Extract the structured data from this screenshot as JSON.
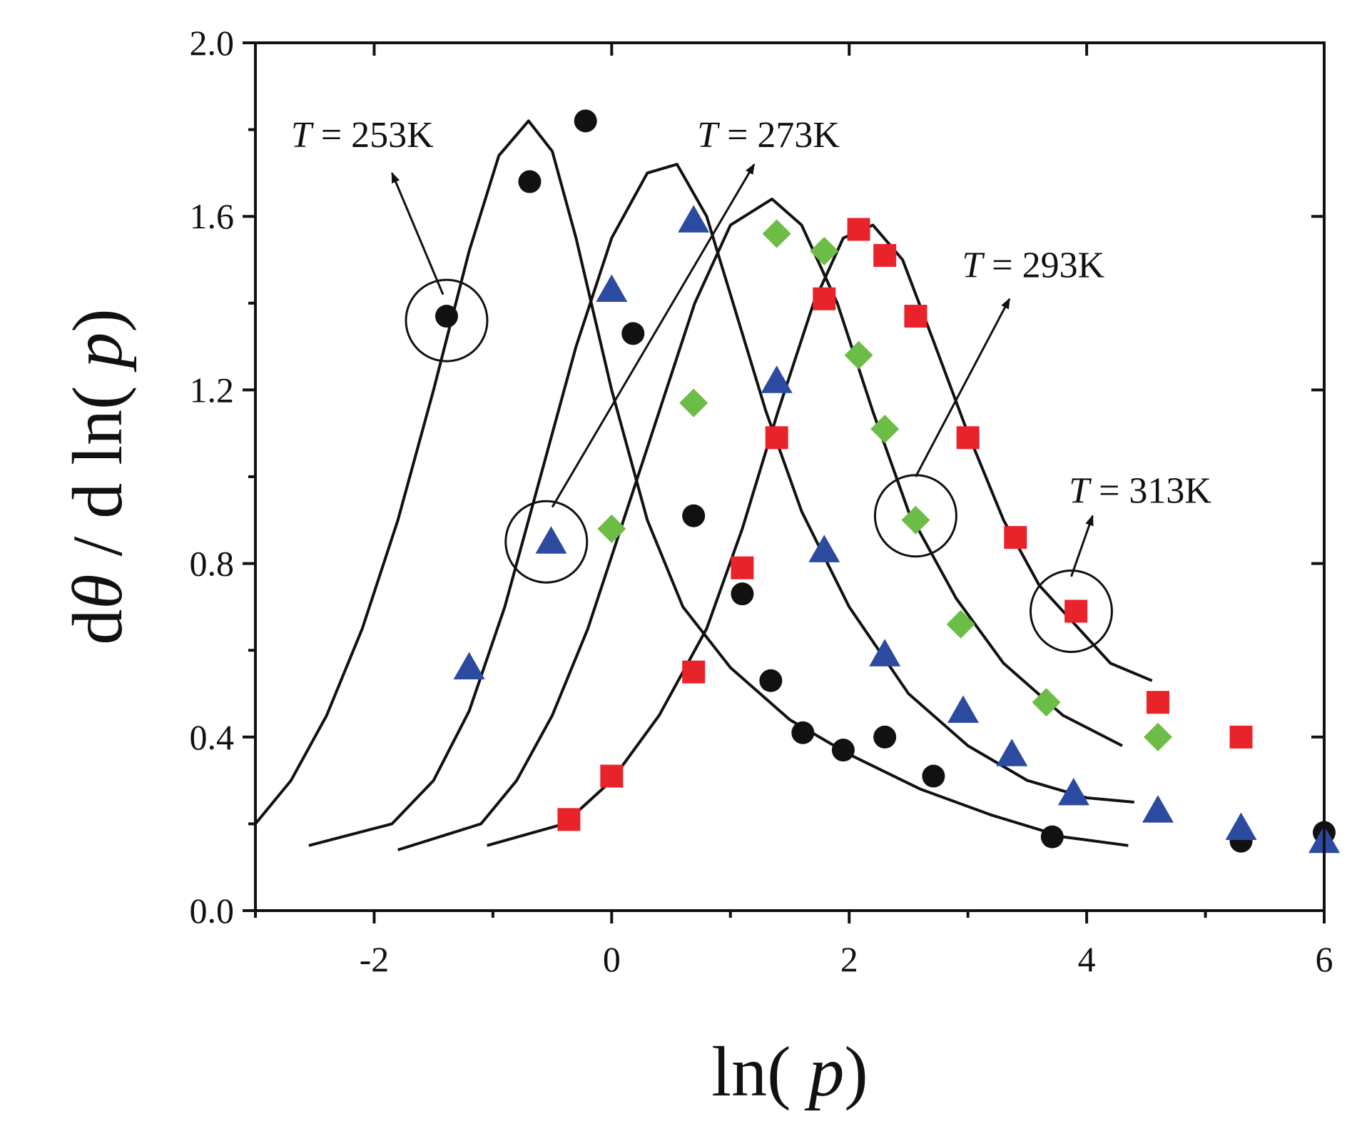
{
  "chart_data": {
    "type": "scatter",
    "title": "",
    "xlabel": "ln( p)",
    "xlabel_parts": {
      "prefix": "ln(",
      "var": "p",
      "suffix": ")"
    },
    "ylabel": "dθ / d ln( p)",
    "ylabel_parts": {
      "d1": "d",
      "theta": "θ",
      "mid": " / d ln(",
      "var": "p",
      "suffix": ")"
    },
    "xlim": [
      -3,
      6
    ],
    "ylim": [
      0.0,
      2.0
    ],
    "xticks": [
      -2,
      0,
      2,
      4,
      6
    ],
    "xtick_labels": [
      "-2",
      "0",
      "2",
      "4",
      "6"
    ],
    "xticks_minor": [
      -3,
      -1,
      1,
      3,
      5
    ],
    "yticks": [
      0.0,
      0.4,
      0.8,
      1.2,
      1.6,
      2.0
    ],
    "ytick_labels": [
      "0.0",
      "0.4",
      "0.8",
      "1.2",
      "1.6",
      "2.0"
    ],
    "yticks_minor": [
      0.2,
      0.6,
      1.0,
      1.4,
      1.8
    ],
    "grid": false,
    "legend": "none",
    "series": [
      {
        "name": "T = 253K",
        "marker": "circle",
        "color": "#111111",
        "points": [
          [
            -1.39,
            1.37
          ],
          [
            -0.69,
            1.68
          ],
          [
            -0.22,
            1.82
          ],
          [
            0.18,
            1.33
          ],
          [
            0.69,
            0.91
          ],
          [
            1.1,
            0.73
          ],
          [
            1.34,
            0.53
          ],
          [
            1.61,
            0.41
          ],
          [
            1.95,
            0.37
          ],
          [
            2.3,
            0.4
          ],
          [
            2.71,
            0.31
          ],
          [
            3.71,
            0.17
          ],
          [
            5.3,
            0.16
          ],
          [
            6.0,
            0.18
          ]
        ]
      },
      {
        "name": "T = 273K",
        "marker": "triangle",
        "color": "#2b4aa0",
        "points": [
          [
            -1.2,
            0.56
          ],
          [
            -0.51,
            0.85
          ],
          [
            0.0,
            1.43
          ],
          [
            0.69,
            1.59
          ],
          [
            1.39,
            1.22
          ],
          [
            1.79,
            0.83
          ],
          [
            2.3,
            0.59
          ],
          [
            2.96,
            0.46
          ],
          [
            3.37,
            0.36
          ],
          [
            3.89,
            0.27
          ],
          [
            4.6,
            0.23
          ],
          [
            5.3,
            0.19
          ],
          [
            6.0,
            0.16
          ]
        ]
      },
      {
        "name": "T = 293K",
        "marker": "diamond",
        "color": "#6cbd45",
        "points": [
          [
            0.0,
            0.88
          ],
          [
            0.69,
            1.17
          ],
          [
            1.39,
            1.56
          ],
          [
            1.79,
            1.52
          ],
          [
            2.08,
            1.28
          ],
          [
            2.3,
            1.11
          ],
          [
            2.56,
            0.9
          ],
          [
            2.94,
            0.66
          ],
          [
            3.66,
            0.48
          ],
          [
            4.6,
            0.4
          ]
        ]
      },
      {
        "name": "T = 313K",
        "marker": "square",
        "color": "#e8232a",
        "points": [
          [
            -0.36,
            0.21
          ],
          [
            0.0,
            0.31
          ],
          [
            0.69,
            0.55
          ],
          [
            1.1,
            0.79
          ],
          [
            1.39,
            1.09
          ],
          [
            1.79,
            1.41
          ],
          [
            2.08,
            1.57
          ],
          [
            2.3,
            1.51
          ],
          [
            2.56,
            1.37
          ],
          [
            3.0,
            1.09
          ],
          [
            3.4,
            0.86
          ],
          [
            3.91,
            0.69
          ],
          [
            4.6,
            0.48
          ],
          [
            5.3,
            0.4
          ]
        ]
      }
    ],
    "fits": [
      {
        "name": "fit-253K",
        "points": [
          [
            -3.0,
            0.2
          ],
          [
            -2.7,
            0.3
          ],
          [
            -2.4,
            0.45
          ],
          [
            -2.1,
            0.65
          ],
          [
            -1.8,
            0.9
          ],
          [
            -1.5,
            1.2
          ],
          [
            -1.2,
            1.52
          ],
          [
            -0.95,
            1.74
          ],
          [
            -0.7,
            1.82
          ],
          [
            -0.5,
            1.75
          ],
          [
            -0.3,
            1.55
          ],
          [
            0.0,
            1.2
          ],
          [
            0.3,
            0.9
          ],
          [
            0.6,
            0.7
          ],
          [
            1.0,
            0.56
          ],
          [
            1.5,
            0.44
          ],
          [
            2.0,
            0.36
          ],
          [
            2.6,
            0.28
          ],
          [
            3.2,
            0.22
          ],
          [
            3.8,
            0.17
          ],
          [
            4.35,
            0.15
          ]
        ]
      },
      {
        "name": "fit-273K",
        "points": [
          [
            -2.55,
            0.15
          ],
          [
            -1.85,
            0.2
          ],
          [
            -1.5,
            0.3
          ],
          [
            -1.2,
            0.46
          ],
          [
            -0.9,
            0.7
          ],
          [
            -0.6,
            1.0
          ],
          [
            -0.3,
            1.3
          ],
          [
            0.0,
            1.55
          ],
          [
            0.3,
            1.7
          ],
          [
            0.55,
            1.72
          ],
          [
            0.8,
            1.6
          ],
          [
            1.0,
            1.42
          ],
          [
            1.3,
            1.15
          ],
          [
            1.6,
            0.92
          ],
          [
            2.0,
            0.7
          ],
          [
            2.5,
            0.5
          ],
          [
            3.0,
            0.38
          ],
          [
            3.5,
            0.3
          ],
          [
            4.0,
            0.26
          ],
          [
            4.4,
            0.25
          ]
        ]
      },
      {
        "name": "fit-293K",
        "points": [
          [
            -1.8,
            0.14
          ],
          [
            -1.1,
            0.2
          ],
          [
            -0.8,
            0.3
          ],
          [
            -0.5,
            0.45
          ],
          [
            -0.2,
            0.65
          ],
          [
            0.1,
            0.9
          ],
          [
            0.4,
            1.15
          ],
          [
            0.7,
            1.4
          ],
          [
            1.0,
            1.58
          ],
          [
            1.35,
            1.64
          ],
          [
            1.6,
            1.58
          ],
          [
            1.9,
            1.4
          ],
          [
            2.2,
            1.15
          ],
          [
            2.5,
            0.92
          ],
          [
            2.9,
            0.72
          ],
          [
            3.3,
            0.57
          ],
          [
            3.8,
            0.45
          ],
          [
            4.3,
            0.38
          ]
        ]
      },
      {
        "name": "fit-313K",
        "points": [
          [
            -1.05,
            0.15
          ],
          [
            -0.4,
            0.2
          ],
          [
            0.0,
            0.3
          ],
          [
            0.4,
            0.45
          ],
          [
            0.8,
            0.65
          ],
          [
            1.1,
            0.88
          ],
          [
            1.4,
            1.15
          ],
          [
            1.7,
            1.4
          ],
          [
            1.95,
            1.55
          ],
          [
            2.2,
            1.58
          ],
          [
            2.45,
            1.5
          ],
          [
            2.7,
            1.32
          ],
          [
            3.0,
            1.1
          ],
          [
            3.3,
            0.9
          ],
          [
            3.6,
            0.75
          ],
          [
            3.9,
            0.66
          ],
          [
            4.2,
            0.57
          ],
          [
            4.55,
            0.53
          ]
        ]
      }
    ],
    "annotations": [
      {
        "name": "label-253K",
        "var": "T",
        "text": " = 253K",
        "circle": [
          -1.39,
          1.36
        ],
        "arrow_from": [
          -1.42,
          1.42
        ],
        "arrow_to": [
          -1.85,
          1.7
        ],
        "label_at": [
          -2.7,
          1.76
        ]
      },
      {
        "name": "label-273K",
        "var": "T",
        "text": " = 273K",
        "circle": [
          -0.55,
          0.85
        ],
        "arrow_from": [
          -0.5,
          0.93
        ],
        "arrow_to": [
          1.2,
          1.72
        ],
        "label_at": [
          0.72,
          1.76
        ]
      },
      {
        "name": "label-293K",
        "var": "T",
        "text": " = 293K",
        "circle": [
          2.56,
          0.91
        ],
        "arrow_from": [
          2.56,
          1.0
        ],
        "arrow_to": [
          3.35,
          1.41
        ],
        "label_at": [
          2.95,
          1.46
        ]
      },
      {
        "name": "label-313K",
        "var": "T",
        "text": " = 313K",
        "circle": [
          3.87,
          0.69
        ],
        "arrow_from": [
          3.87,
          0.77
        ],
        "arrow_to": [
          4.05,
          0.91
        ],
        "label_at": [
          3.85,
          0.94
        ]
      }
    ]
  }
}
